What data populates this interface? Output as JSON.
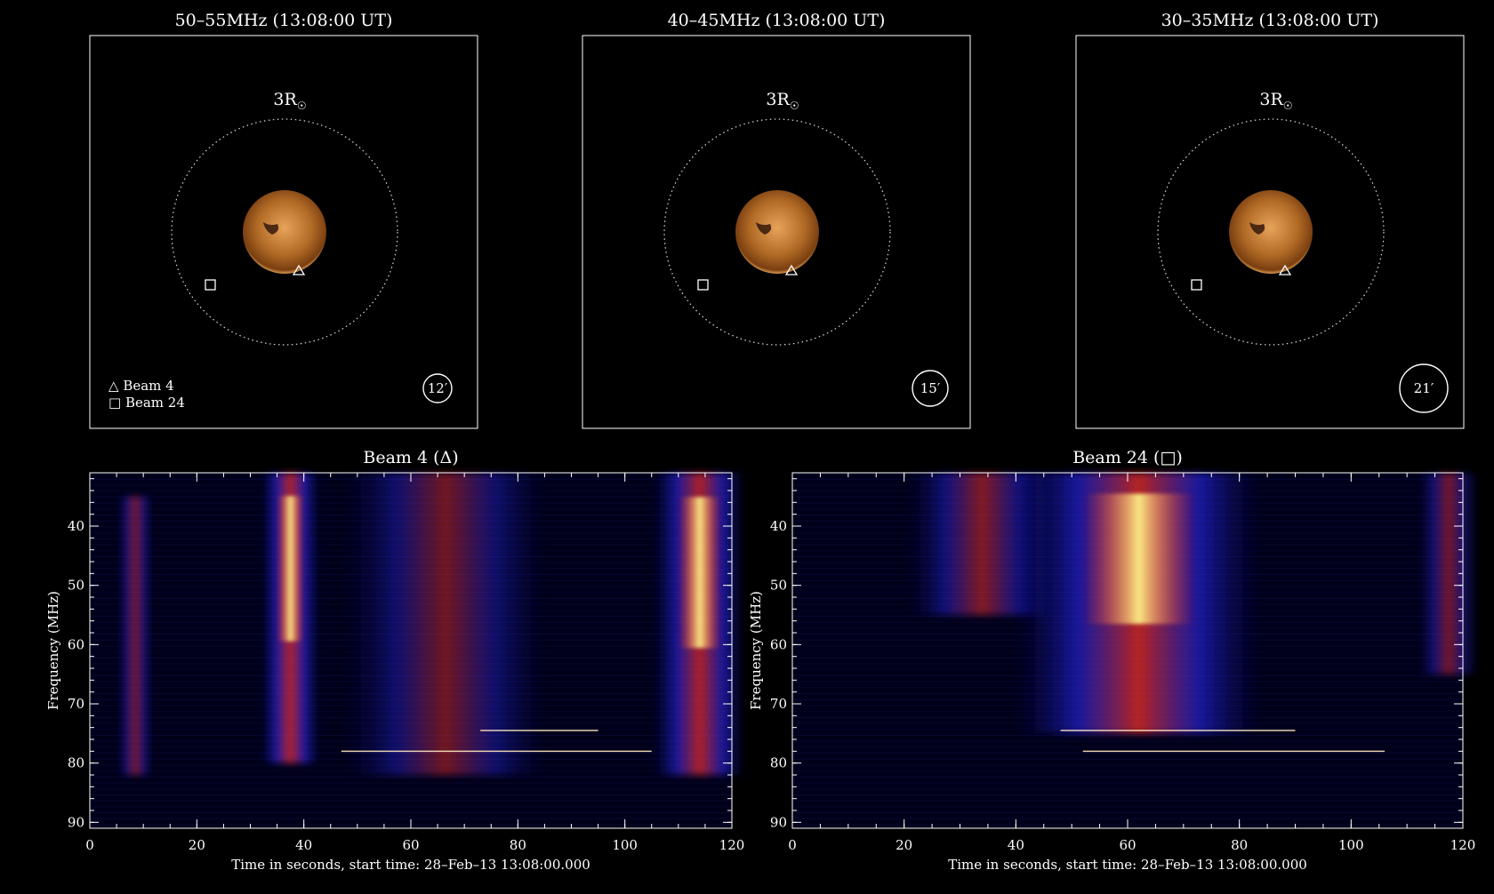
{
  "image_panels": [
    {
      "title": "50–55MHz (13:08:00 UT)",
      "radius_label": "3R",
      "radius_symbol": "☉",
      "beam_label": "12′",
      "beam_size_arcmin": 12
    },
    {
      "title": "40–45MHz (13:08:00 UT)",
      "radius_label": "3R",
      "radius_symbol": "☉",
      "beam_label": "15′",
      "beam_size_arcmin": 15
    },
    {
      "title": "30–35MHz (13:08:00 UT)",
      "radius_label": "3R",
      "radius_symbol": "☉",
      "beam_label": "21′",
      "beam_size_arcmin": 21
    }
  ],
  "legend": {
    "triangle": "Beam 4",
    "square": "Beam 24",
    "triangle_symbol": "△",
    "square_symbol": "□"
  },
  "colors": {
    "background": "#000000",
    "sun": "#c8843a",
    "axis": "#ffffff",
    "spectrum_low": "#000018",
    "spectrum_mid": "#2020ff",
    "spectrum_high": "#ff2020",
    "spectrum_peak": "#ffff80"
  },
  "chart_data": [
    {
      "type": "heatmap",
      "title": "Beam 4 (Δ)",
      "xlabel": "Time in seconds, start time: 28–Feb–13 13:08:00.000",
      "ylabel": "Frequency (MHz)",
      "xlim": [
        0,
        120
      ],
      "ylim": [
        91,
        31
      ],
      "y_inverted": true,
      "xticks": [
        0,
        20,
        40,
        60,
        80,
        100,
        120
      ],
      "yticks": [
        40,
        50,
        60,
        70,
        80,
        90
      ],
      "bursts": [
        {
          "t_start": 7,
          "t_end": 10,
          "f_top": 35,
          "f_bottom": 82,
          "intensity": 0.55
        },
        {
          "t_start": 35,
          "t_end": 40,
          "f_top": 31,
          "f_bottom": 80,
          "intensity": 1.0
        },
        {
          "t_start": 58,
          "t_end": 75,
          "f_top": 31,
          "f_bottom": 82,
          "intensity": 0.45
        },
        {
          "t_start": 110,
          "t_end": 118,
          "f_top": 31,
          "f_bottom": 82,
          "intensity": 0.95
        }
      ],
      "lines": [
        {
          "f": 78,
          "t_start": 47,
          "t_end": 105
        },
        {
          "f": 74.5,
          "t_start": 73,
          "t_end": 95
        }
      ]
    },
    {
      "type": "heatmap",
      "title": "Beam 24 (□)",
      "xlabel": "Time in seconds, start time: 28–Feb–13 13:08:00.000",
      "ylabel": "Frequency (MHz)",
      "xlim": [
        0,
        120
      ],
      "ylim": [
        91,
        31
      ],
      "y_inverted": true,
      "xticks": [
        0,
        20,
        40,
        60,
        80,
        100,
        120
      ],
      "yticks": [
        40,
        50,
        60,
        70,
        80,
        90
      ],
      "bursts": [
        {
          "t_start": 28,
          "t_end": 40,
          "f_top": 31,
          "f_bottom": 55,
          "intensity": 0.6
        },
        {
          "t_start": 52,
          "t_end": 72,
          "f_top": 31,
          "f_bottom": 75,
          "intensity": 1.0
        },
        {
          "t_start": 115,
          "t_end": 120,
          "f_top": 31,
          "f_bottom": 65,
          "intensity": 0.5
        }
      ],
      "lines": [
        {
          "f": 78,
          "t_start": 52,
          "t_end": 106
        },
        {
          "f": 74.5,
          "t_start": 48,
          "t_end": 90
        }
      ]
    }
  ]
}
